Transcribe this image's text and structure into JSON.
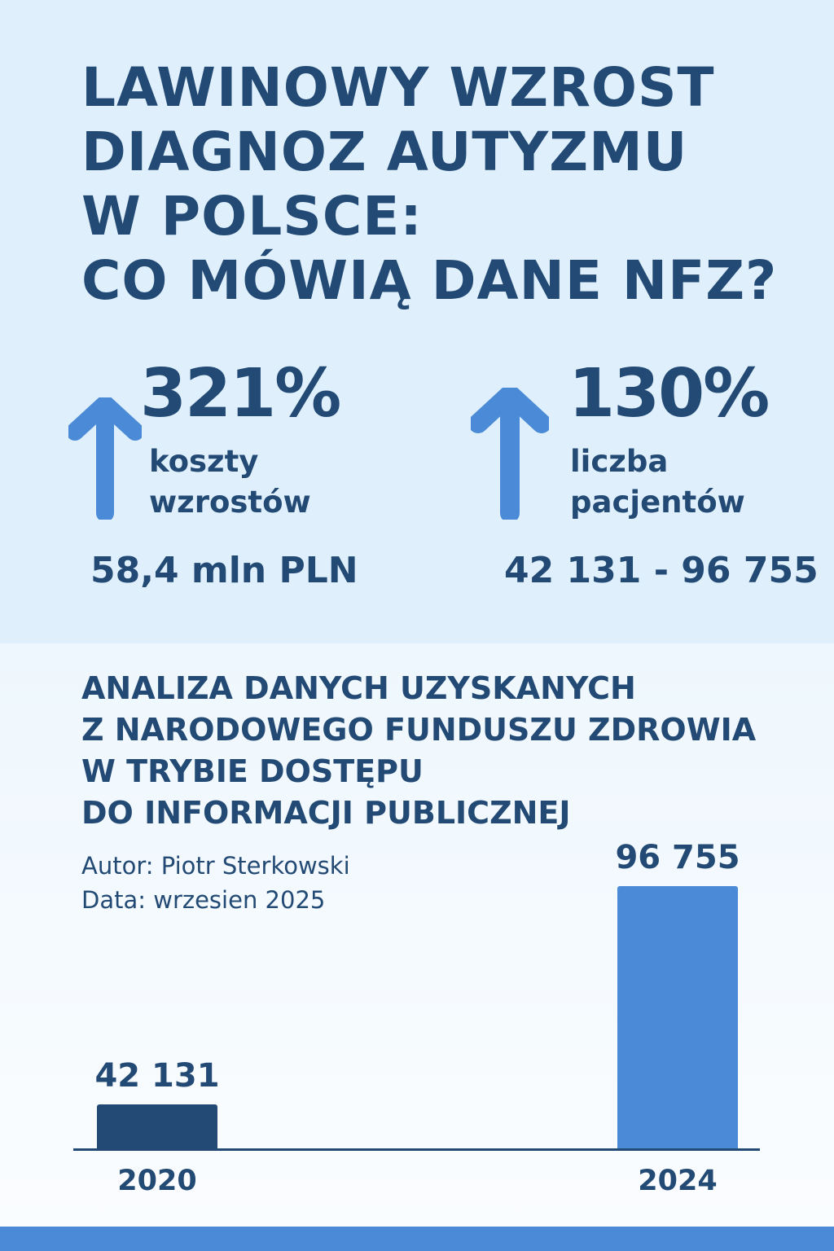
{
  "title_lines": [
    "LAWINOWY WZROST",
    "DIAGNOZ AUTYZMU",
    "W POLSCE:",
    "CO MÓWIĄ DANE NFZ?"
  ],
  "stats": [
    {
      "percent": "321%",
      "label_lines": [
        "koszty",
        "wzrostów"
      ],
      "value": "58,4 mln PLN",
      "icon": "arrow-up-icon"
    },
    {
      "percent": "130%",
      "label_lines": [
        "liczba",
        "pacjentów"
      ],
      "value": "42 131 - 96 755",
      "icon": "arrow-up-icon"
    }
  ],
  "subtitle_lines": [
    "ANALIZA DANYCH UZYSKANYCH",
    "Z NARODOWEGO FUNDUSZU ZDROWIA",
    "W TRYBIE DOSTĘPU",
    "DO INFORMACJI PUBLICZNEJ"
  ],
  "author": "Autor: Piotr Sterkowski",
  "date": "Data: wrzesien 2025",
  "colors": {
    "dark": "#234a74",
    "accent": "#4a8ad6",
    "top_bg": "#dff0fc"
  },
  "chart_data": {
    "type": "bar",
    "categories": [
      "2020",
      "2024"
    ],
    "values": [
      42131,
      96755
    ],
    "data_labels": [
      "42 131",
      "96 755"
    ],
    "bar_colors": [
      "#234a74",
      "#4a8ad6"
    ],
    "ylim": [
      31000,
      96755
    ],
    "title": "",
    "xlabel": "",
    "ylabel": "",
    "grid": false
  }
}
